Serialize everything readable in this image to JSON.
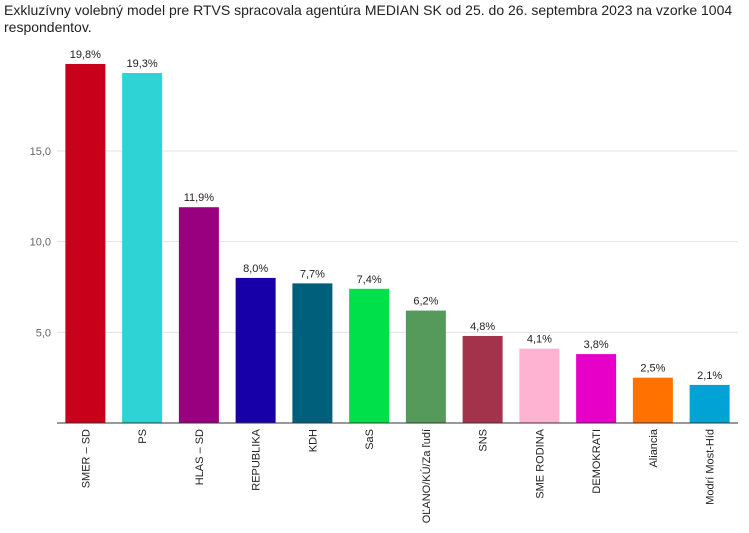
{
  "chart_data": {
    "type": "bar",
    "title": "Exkluzívny volebný model pre RTVS spracovala agentúra MEDIAN SK od 25. do 26. septembra 2023 na vzorke 1004 respondentov.",
    "xlabel": "",
    "ylabel": "",
    "ylim": [
      0,
      20
    ],
    "yticks": [
      "5,0",
      "10,0",
      "15,0"
    ],
    "ytick_values": [
      5,
      10,
      15
    ],
    "grid": true,
    "categories": [
      "SMER – SD",
      "PS",
      "HLAS – SD",
      "REPUBLIKA",
      "KDH",
      "SaS",
      "OĽANO/KÚ/Za ľudí",
      "SNS",
      "SME RODINA",
      "DEMOKRATI",
      "Aliancia",
      "Modrí Most-Híd"
    ],
    "values": [
      19.8,
      19.3,
      11.9,
      8.0,
      7.7,
      7.4,
      6.2,
      4.8,
      4.1,
      3.8,
      2.5,
      2.1
    ],
    "value_labels": [
      "19,8%",
      "19,3%",
      "11,9%",
      "8,0%",
      "7,7%",
      "7,4%",
      "6,2%",
      "4,8%",
      "4,1%",
      "3,8%",
      "2,5%",
      "2,1%"
    ],
    "colors": [
      "#c9001a",
      "#2ed3d6",
      "#980080",
      "#1700a8",
      "#00607c",
      "#00e04a",
      "#559a5a",
      "#a3334a",
      "#ffb3d2",
      "#e600c8",
      "#ff7200",
      "#00a3d3"
    ]
  }
}
